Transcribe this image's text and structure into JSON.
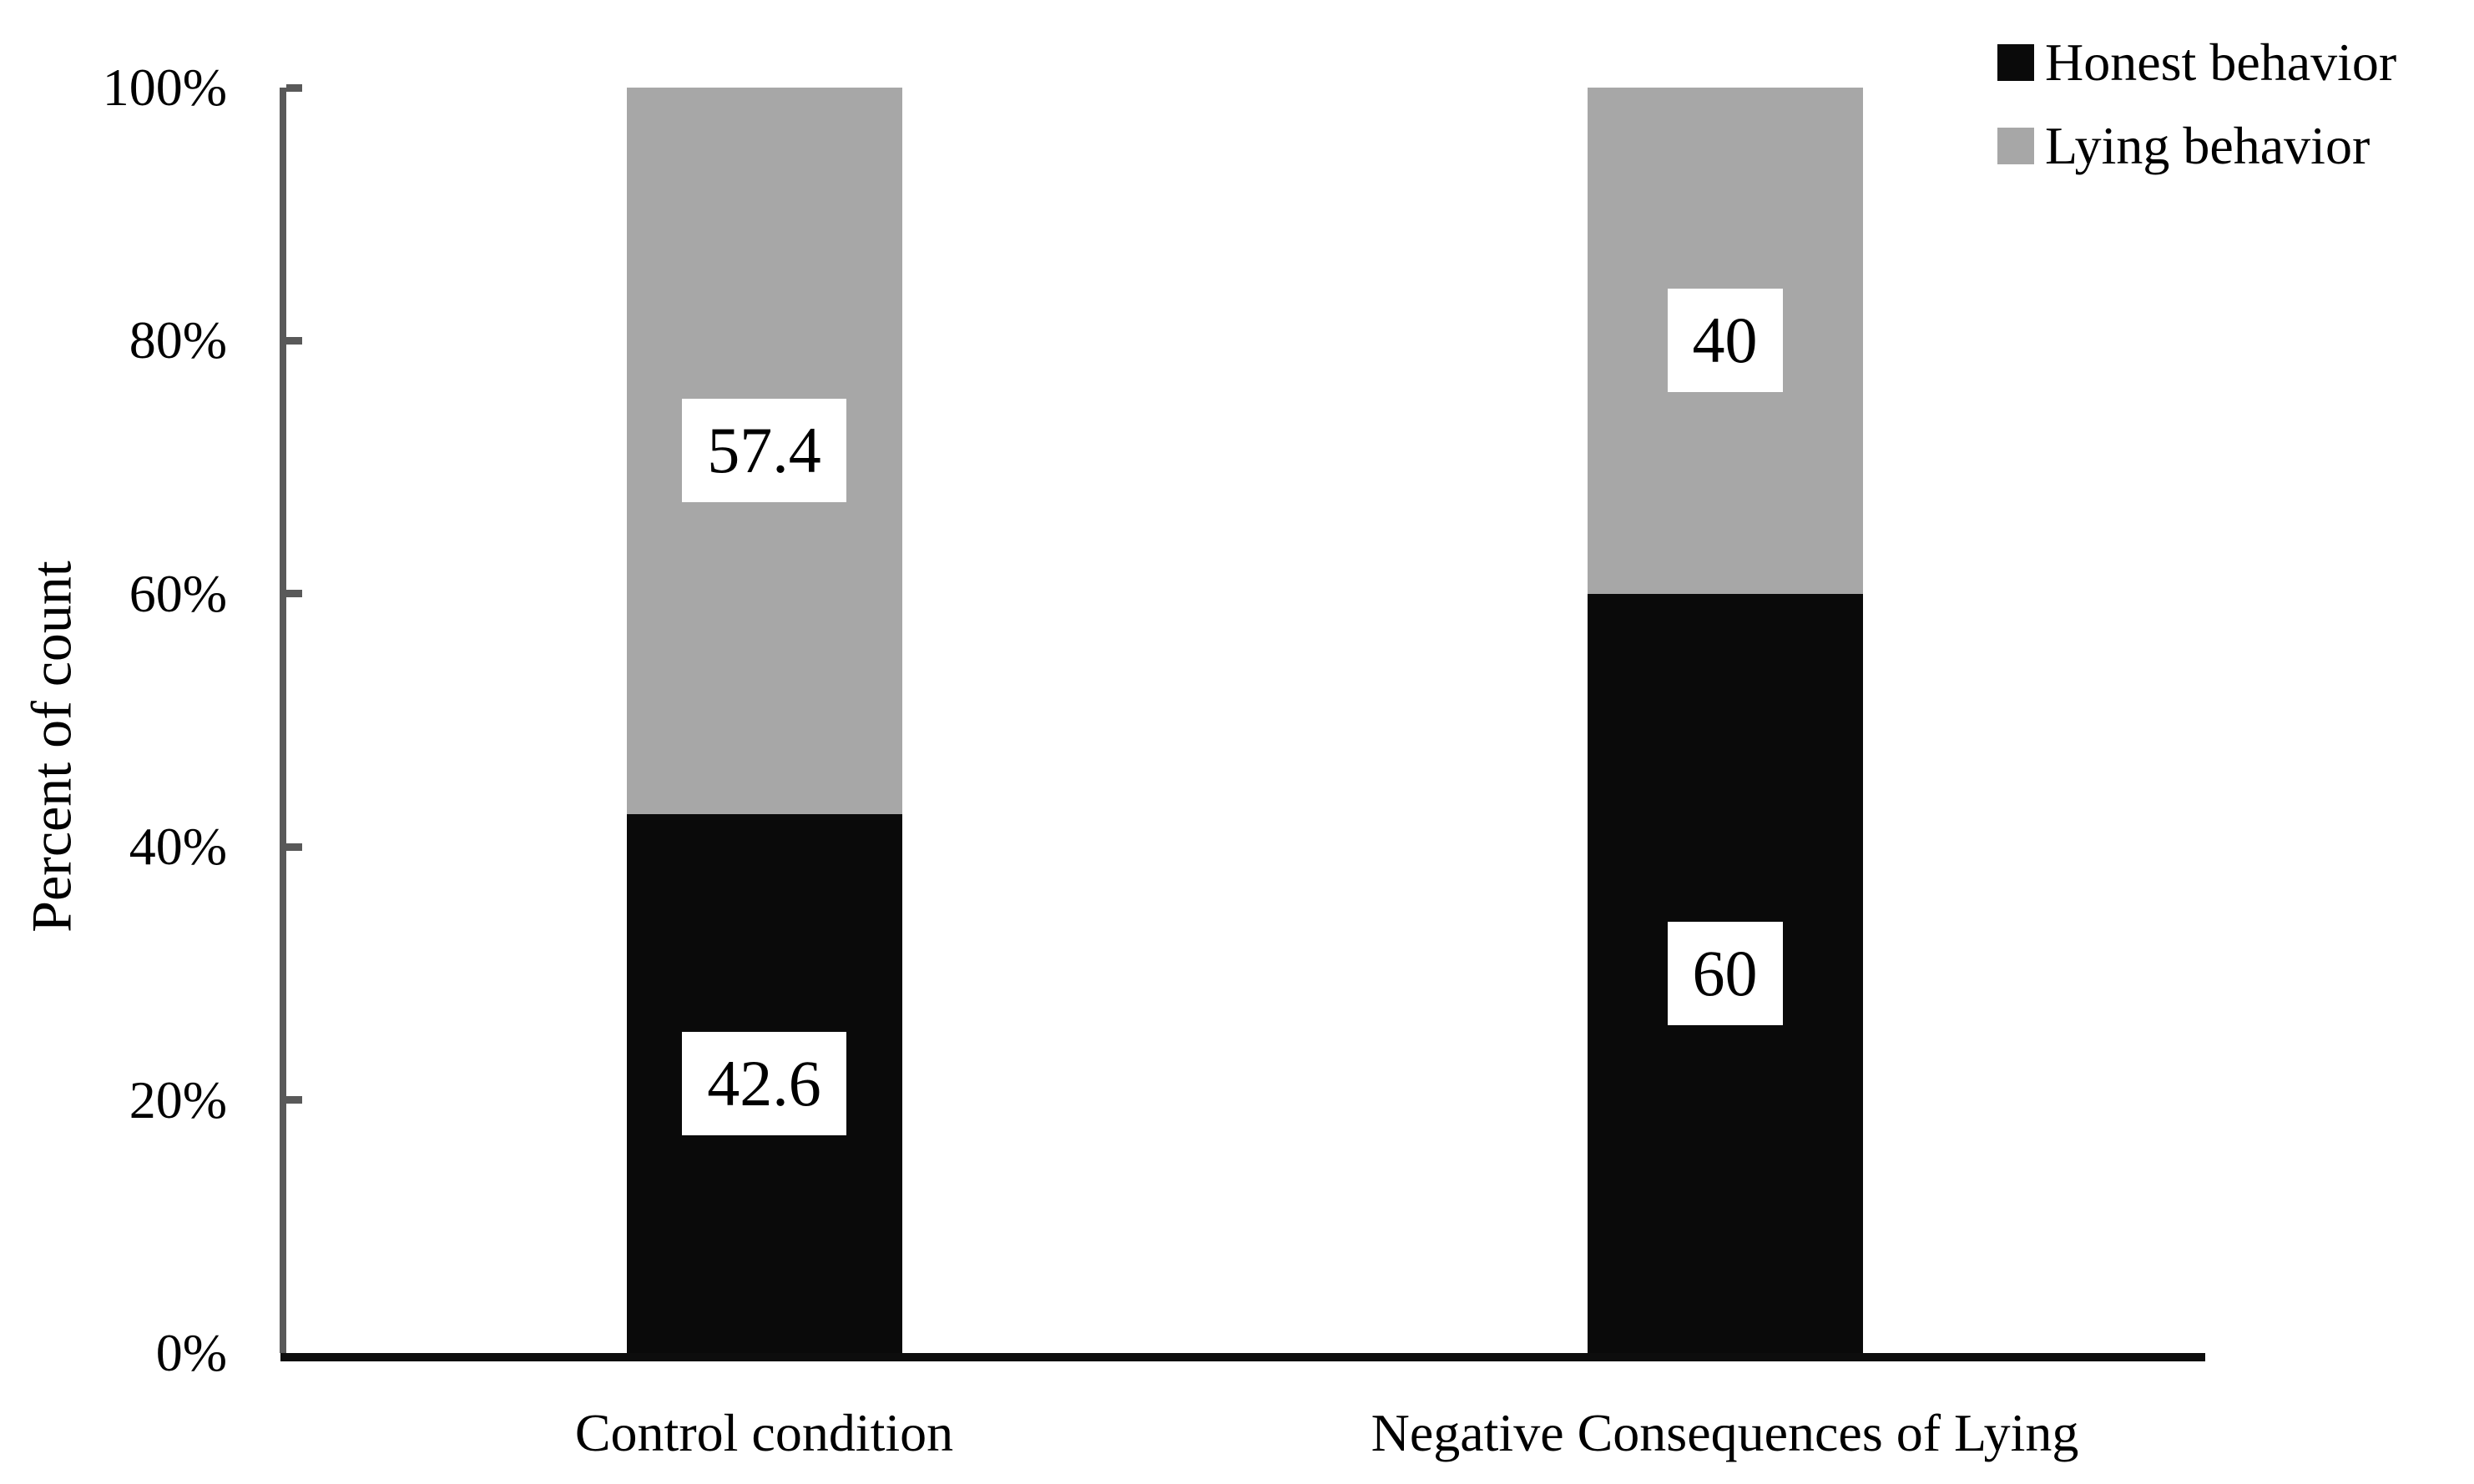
{
  "chart_data": {
    "type": "bar",
    "stacked": true,
    "units": "percent",
    "title": "",
    "ylabel": "Percent of count",
    "xlabel": "",
    "categories": [
      "Control condition",
      "Negative Consequences of Lying"
    ],
    "series": [
      {
        "name": "Honest behavior",
        "color": "#0a0a0a",
        "values": [
          42.6,
          60
        ],
        "data_labels": [
          "42.6",
          "60"
        ]
      },
      {
        "name": "Lying behavior",
        "color": "#a7a7a7",
        "values": [
          57.4,
          40
        ],
        "data_labels": [
          "57.4",
          "40"
        ]
      }
    ],
    "y_ticks": [
      {
        "value": 0,
        "label": "0%"
      },
      {
        "value": 20,
        "label": "20%"
      },
      {
        "value": 40,
        "label": "40%"
      },
      {
        "value": 60,
        "label": "60%"
      },
      {
        "value": 80,
        "label": "80%"
      },
      {
        "value": 100,
        "label": "100%"
      }
    ],
    "ylim": [
      0,
      100
    ],
    "grid": false,
    "legend_position": "top-right",
    "axis_colors": {
      "y_axis": "#595959",
      "tick": "#595959",
      "x_axis": "#0d0d0d"
    },
    "data_label_background": "#ffffff"
  }
}
